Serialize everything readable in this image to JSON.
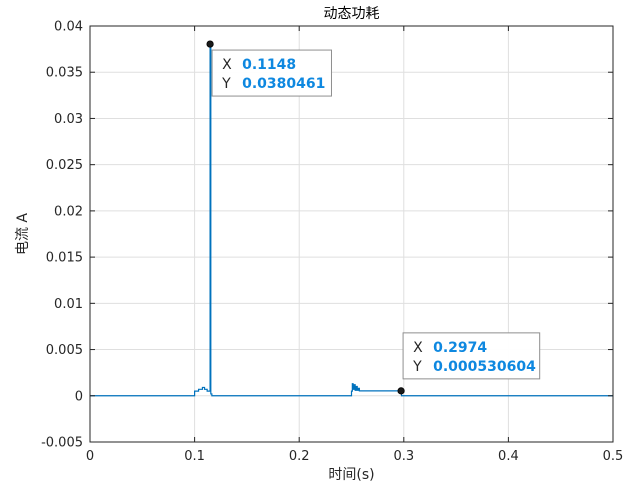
{
  "chart_data": {
    "type": "line",
    "title": "动态功耗",
    "xlabel": "时间(s)",
    "ylabel": "电流 A",
    "xlim": [
      0,
      0.5
    ],
    "ylim": [
      -0.005,
      0.04
    ],
    "xticks": [
      0,
      0.1,
      0.2,
      0.3,
      0.4,
      0.5
    ],
    "xtick_labels": [
      "0",
      "0.1",
      "0.2",
      "0.3",
      "0.4",
      "0.5"
    ],
    "yticks": [
      -0.005,
      0,
      0.005,
      0.01,
      0.015,
      0.02,
      0.025,
      0.03,
      0.035,
      0.04
    ],
    "ytick_labels": [
      "-0.005",
      "0",
      "0.005",
      "0.01",
      "0.015",
      "0.02",
      "0.025",
      "0.03",
      "0.035",
      "0.04"
    ],
    "grid": true,
    "line_color": "#0072bd",
    "series": [
      {
        "x": [
          0,
          0.1,
          0.1,
          0.1038,
          0.1038,
          0.1075,
          0.1075,
          0.1095,
          0.1095,
          0.112,
          0.112,
          0.1148,
          0.1148,
          0.1155,
          0.1155,
          0.1165,
          0.1165,
          0.25,
          0.25,
          0.2508,
          0.2508,
          0.2515,
          0.2515,
          0.2525,
          0.2525,
          0.2535,
          0.2535,
          0.2545,
          0.2545,
          0.2555,
          0.2555,
          0.2565,
          0.2565,
          0.2575,
          0.2575,
          0.2973,
          0.2973,
          0.2978,
          0.2978,
          0.5
        ],
        "y": [
          0,
          0,
          0.0005,
          0.0005,
          0.0007,
          0.0007,
          0.0009,
          0.0009,
          0.0007,
          0.0007,
          0.0005,
          0.0005,
          0.0380461,
          0.0380461,
          0.0002,
          0.0002,
          0,
          0,
          0.0005,
          0.0005,
          0.0013,
          0.0013,
          0.0007,
          0.0007,
          0.0012,
          0.0012,
          0.0006,
          0.0006,
          0.001,
          0.001,
          0.0006,
          0.0006,
          0.0008,
          0.0008,
          0.00053,
          0.00053,
          0.000530604,
          0.000530604,
          0,
          0
        ]
      }
    ],
    "datatips": [
      {
        "x": 0.1148,
        "y": 0.0380461,
        "x_key": "X",
        "y_key": "Y",
        "x_text": "0.1148",
        "y_text": "0.0380461",
        "box": "right-below"
      },
      {
        "x": 0.2974,
        "y": 0.000530604,
        "x_key": "X",
        "y_key": "Y",
        "x_text": "0.2974",
        "y_text": "0.000530604",
        "box": "right-above"
      }
    ]
  }
}
